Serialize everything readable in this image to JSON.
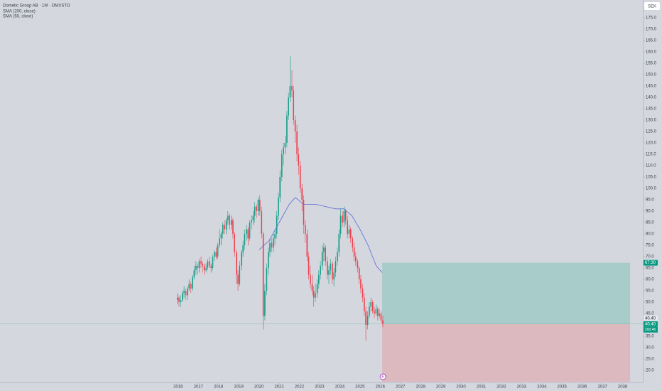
{
  "chart_data": {
    "type": "candlestick",
    "title": "Dometic Group AB · 1M · OMXSTO",
    "legend": [
      "SMA (200, close)",
      "SMA (50, close)"
    ],
    "currency": "SEK",
    "up_color": "#089981",
    "down_color": "#f23645",
    "xlim": [
      2007.18,
      2039.0
    ],
    "xticks": [
      2016,
      2017,
      2018,
      2019,
      2020,
      2021,
      2022,
      2023,
      2024,
      2025,
      2026,
      2027,
      2028,
      2029,
      2030,
      2031,
      2032,
      2033,
      2034,
      2035,
      2036,
      2037,
      2038
    ],
    "ylim": [
      14.7,
      182.8
    ],
    "yticks": [
      {
        "value": 20,
        "label": "20.0"
      },
      {
        "value": 25,
        "label": "25.0"
      },
      {
        "value": 30,
        "label": "30.0"
      },
      {
        "value": 35,
        "label": "35.0"
      },
      {
        "value": 40,
        "label": "40.0"
      },
      {
        "value": 45,
        "label": "45.0"
      },
      {
        "value": 50,
        "label": "50.0"
      },
      {
        "value": 55,
        "label": "55.0"
      },
      {
        "value": 60,
        "label": "60.0"
      },
      {
        "value": 65,
        "label": "65.0"
      },
      {
        "value": 70,
        "label": "70.0"
      },
      {
        "value": 75,
        "label": "75.0"
      },
      {
        "value": 80,
        "label": "80.0"
      },
      {
        "value": 85,
        "label": "85.0"
      },
      {
        "value": 90,
        "label": "90.0"
      },
      {
        "value": 95,
        "label": "95.0"
      },
      {
        "value": 100,
        "label": "100.0"
      },
      {
        "value": 105,
        "label": "105.0"
      },
      {
        "value": 110,
        "label": "110.0"
      },
      {
        "value": 115,
        "label": "115.0"
      },
      {
        "value": 120,
        "label": "120.0"
      },
      {
        "value": 125,
        "label": "125.0"
      },
      {
        "value": 130,
        "label": "130.0"
      },
      {
        "value": 135,
        "label": "135.0"
      },
      {
        "value": 140,
        "label": "140.0"
      },
      {
        "value": 145,
        "label": "145.0"
      },
      {
        "value": 150,
        "label": "150.0"
      },
      {
        "value": 155,
        "label": "155.0"
      },
      {
        "value": 160,
        "label": "160.0"
      },
      {
        "value": 165,
        "label": "165.0"
      },
      {
        "value": 170,
        "label": "170.0"
      },
      {
        "value": 175,
        "label": "175.0"
      }
    ],
    "x": [
      2015.96,
      2016.04,
      2016.13,
      2016.21,
      2016.29,
      2016.38,
      2016.46,
      2016.54,
      2016.63,
      2016.71,
      2016.79,
      2016.88,
      2016.96,
      2017.04,
      2017.13,
      2017.21,
      2017.29,
      2017.38,
      2017.46,
      2017.54,
      2017.63,
      2017.71,
      2017.79,
      2017.88,
      2017.96,
      2018.04,
      2018.13,
      2018.21,
      2018.29,
      2018.38,
      2018.46,
      2018.54,
      2018.63,
      2018.71,
      2018.79,
      2018.88,
      2018.96,
      2019.04,
      2019.13,
      2019.21,
      2019.29,
      2019.38,
      2019.46,
      2019.54,
      2019.63,
      2019.71,
      2019.79,
      2019.88,
      2019.96,
      2020.04,
      2020.13,
      2020.21,
      2020.29,
      2020.38,
      2020.46,
      2020.54,
      2020.63,
      2020.71,
      2020.79,
      2020.88,
      2020.96,
      2021.04,
      2021.13,
      2021.21,
      2021.29,
      2021.38,
      2021.46,
      2021.54,
      2021.63,
      2021.71,
      2021.79,
      2021.88,
      2021.96,
      2022.04,
      2022.13,
      2022.21,
      2022.29,
      2022.38,
      2022.46,
      2022.54,
      2022.63,
      2022.71,
      2022.79,
      2022.88,
      2022.96,
      2023.04,
      2023.13,
      2023.21,
      2023.29,
      2023.38,
      2023.46,
      2023.54,
      2023.63,
      2023.71,
      2023.79,
      2023.88,
      2023.96,
      2024.04,
      2024.13,
      2024.21,
      2024.29,
      2024.38,
      2024.46,
      2024.54,
      2024.63,
      2024.71,
      2024.79,
      2024.88,
      2024.96,
      2025.04,
      2025.13,
      2025.21,
      2025.29,
      2025.38,
      2025.46,
      2025.54,
      2025.63,
      2025.71,
      2025.79,
      2025.88,
      2025.96,
      2026.04,
      2026.13
    ],
    "ohlc": [
      [
        51,
        54,
        49,
        52
      ],
      [
        52,
        53,
        48,
        50
      ],
      [
        50,
        53,
        48,
        51
      ],
      [
        51,
        55,
        50,
        54
      ],
      [
        54,
        57,
        52,
        55
      ],
      [
        55,
        56,
        51,
        53
      ],
      [
        53,
        57,
        51,
        56
      ],
      [
        56,
        60,
        55,
        58
      ],
      [
        58,
        59,
        54,
        56
      ],
      [
        56,
        62,
        55,
        61
      ],
      [
        61,
        66,
        60,
        64
      ],
      [
        64,
        68,
        62,
        66
      ],
      [
        66,
        67,
        62,
        65
      ],
      [
        65,
        69,
        63,
        68
      ],
      [
        68,
        70,
        65,
        67
      ],
      [
        67,
        68,
        63,
        66
      ],
      [
        66,
        67,
        62,
        64
      ],
      [
        64,
        67,
        63,
        65
      ],
      [
        65,
        69,
        64,
        68
      ],
      [
        68,
        70,
        65,
        66
      ],
      [
        66,
        67,
        63,
        65
      ],
      [
        65,
        71,
        64,
        70
      ],
      [
        70,
        73,
        68,
        72
      ],
      [
        72,
        74,
        69,
        70
      ],
      [
        70,
        76,
        69,
        75
      ],
      [
        75,
        82,
        74,
        78
      ],
      [
        78,
        81,
        75,
        80
      ],
      [
        80,
        85,
        78,
        84
      ],
      [
        84,
        86,
        80,
        82
      ],
      [
        82,
        87,
        80,
        86
      ],
      [
        86,
        90,
        84,
        88
      ],
      [
        88,
        89,
        82,
        84
      ],
      [
        84,
        88,
        82,
        86
      ],
      [
        86,
        87,
        78,
        80
      ],
      [
        80,
        81,
        70,
        72
      ],
      [
        72,
        73,
        58,
        62
      ],
      [
        62,
        64,
        55,
        58
      ],
      [
        58,
        68,
        57,
        66
      ],
      [
        66,
        73,
        64,
        72
      ],
      [
        72,
        77,
        70,
        75
      ],
      [
        75,
        82,
        73,
        80
      ],
      [
        80,
        84,
        77,
        82
      ],
      [
        82,
        83,
        75,
        78
      ],
      [
        78,
        86,
        77,
        85
      ],
      [
        85,
        88,
        82,
        86
      ],
      [
        86,
        90,
        84,
        88
      ],
      [
        88,
        94,
        85,
        92
      ],
      [
        92,
        93,
        87,
        90
      ],
      [
        90,
        96,
        88,
        95
      ],
      [
        95,
        97,
        88,
        90
      ],
      [
        90,
        92,
        78,
        80
      ],
      [
        80,
        81,
        38,
        44
      ],
      [
        44,
        58,
        42,
        55
      ],
      [
        55,
        67,
        53,
        65
      ],
      [
        65,
        74,
        62,
        72
      ],
      [
        72,
        78,
        70,
        76
      ],
      [
        76,
        78,
        72,
        74
      ],
      [
        74,
        80,
        72,
        78
      ],
      [
        78,
        82,
        75,
        80
      ],
      [
        80,
        90,
        78,
        88
      ],
      [
        88,
        98,
        86,
        96
      ],
      [
        96,
        108,
        94,
        105
      ],
      [
        105,
        117,
        103,
        115
      ],
      [
        115,
        120,
        110,
        118
      ],
      [
        118,
        123,
        115,
        120
      ],
      [
        120,
        134,
        118,
        132
      ],
      [
        132,
        142,
        130,
        140
      ],
      [
        140,
        158,
        138,
        145
      ],
      [
        145,
        152,
        140,
        143
      ],
      [
        143,
        145,
        128,
        130
      ],
      [
        130,
        132,
        120,
        125
      ],
      [
        125,
        128,
        112,
        115
      ],
      [
        115,
        118,
        106,
        110
      ],
      [
        110,
        112,
        98,
        100
      ],
      [
        100,
        102,
        90,
        95
      ],
      [
        95,
        97,
        80,
        84
      ],
      [
        84,
        86,
        76,
        80
      ],
      [
        80,
        82,
        68,
        70
      ],
      [
        70,
        72,
        60,
        62
      ],
      [
        62,
        66,
        56,
        58
      ],
      [
        58,
        62,
        53,
        55
      ],
      [
        55,
        57,
        48,
        52
      ],
      [
        52,
        58,
        50,
        54
      ],
      [
        54,
        60,
        52,
        58
      ],
      [
        58,
        64,
        56,
        62
      ],
      [
        62,
        68,
        60,
        66
      ],
      [
        66,
        75,
        64,
        72
      ],
      [
        72,
        76,
        68,
        74
      ],
      [
        74,
        75,
        66,
        68
      ],
      [
        68,
        70,
        60,
        62
      ],
      [
        62,
        66,
        58,
        64
      ],
      [
        64,
        69,
        62,
        67
      ],
      [
        67,
        68,
        58,
        60
      ],
      [
        60,
        65,
        57,
        63
      ],
      [
        63,
        70,
        61,
        68
      ],
      [
        68,
        74,
        66,
        72
      ],
      [
        72,
        82,
        70,
        80
      ],
      [
        80,
        91,
        78,
        88
      ],
      [
        88,
        90,
        83,
        85
      ],
      [
        85,
        92,
        83,
        90
      ],
      [
        90,
        91,
        84,
        86
      ],
      [
        86,
        88,
        78,
        80
      ],
      [
        80,
        84,
        78,
        82
      ],
      [
        82,
        83,
        76,
        78
      ],
      [
        78,
        79,
        72,
        74
      ],
      [
        74,
        76,
        68,
        70
      ],
      [
        70,
        72,
        66,
        68
      ],
      [
        68,
        69,
        63,
        65
      ],
      [
        65,
        66,
        58,
        60
      ],
      [
        60,
        62,
        54,
        56
      ],
      [
        56,
        58,
        50,
        52
      ],
      [
        52,
        54,
        44,
        46
      ],
      [
        46,
        48,
        33,
        40
      ],
      [
        40,
        46,
        38,
        44
      ],
      [
        44,
        50,
        43,
        48
      ],
      [
        48,
        52,
        46,
        50
      ],
      [
        50,
        51,
        45,
        46
      ],
      [
        46,
        48,
        43,
        45
      ],
      [
        45,
        49,
        44,
        47
      ],
      [
        47,
        48,
        42,
        44
      ],
      [
        44,
        47,
        43,
        45
      ],
      [
        45,
        46,
        41,
        42
      ],
      [
        42,
        44,
        39,
        40.4
      ]
    ],
    "sma": {
      "color": "#5b6bd6",
      "x": [
        2020.0,
        2020.5,
        2021.0,
        2021.5,
        2021.8,
        2022.2,
        2022.8,
        2023.3,
        2023.8,
        2024.2,
        2024.6,
        2025.0,
        2025.4,
        2025.8,
        2026.1
      ],
      "values": [
        73,
        77,
        85,
        93,
        96,
        93,
        93,
        92,
        91,
        91,
        88,
        82,
        75,
        66,
        63
      ]
    },
    "position": {
      "start": 2026.1,
      "end": 2038.37,
      "target": {
        "value": 67.3,
        "label": "67.30"
      },
      "entry": {
        "value": 40.4,
        "label": "40.40"
      },
      "stop": 15
    },
    "last_price": {
      "value": 40.4,
      "label": "40.40"
    },
    "countdown": "20d 4h",
    "earnings_marker": "E"
  }
}
